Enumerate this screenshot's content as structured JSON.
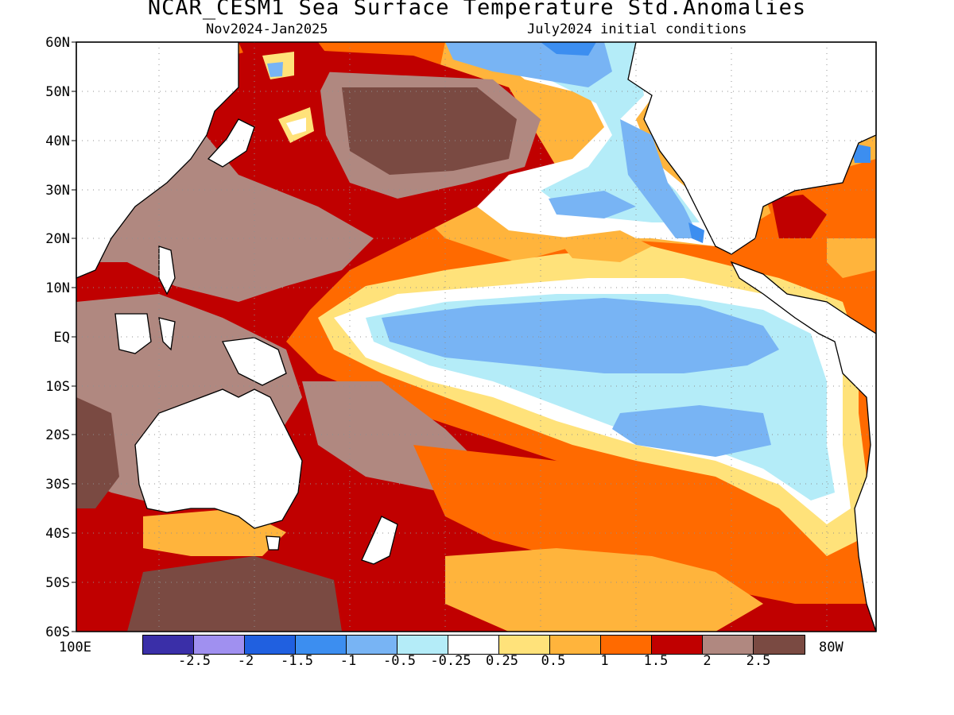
{
  "title": "NCAR_CESM1 Sea Surface Temperature Std.Anomalies",
  "subtitle_left": "Nov2024-Jan2025",
  "subtitle_right": "July2024 initial conditions",
  "lat_labels": [
    "60N",
    "50N",
    "40N",
    "30N",
    "20N",
    "10N",
    "EQ",
    "10S",
    "20S",
    "30S",
    "40S",
    "50S",
    "60S"
  ],
  "lon_left": "100E",
  "lon_right": "80W",
  "colorbar": {
    "colors": [
      "#3a2fa8",
      "#a090f0",
      "#2060e0",
      "#3c8ef0",
      "#78b4f4",
      "#b4ecf8",
      "#ffffff",
      "#ffe27a",
      "#ffb43c",
      "#ff6a00",
      "#c00000",
      "#b08880",
      "#7a4a42"
    ],
    "labels": [
      "-2.5",
      "-2",
      "-1.5",
      "-1",
      "-0.5",
      "-0.25",
      "0.25",
      "0.5",
      "1",
      "1.5",
      "2",
      "2.5"
    ]
  }
}
